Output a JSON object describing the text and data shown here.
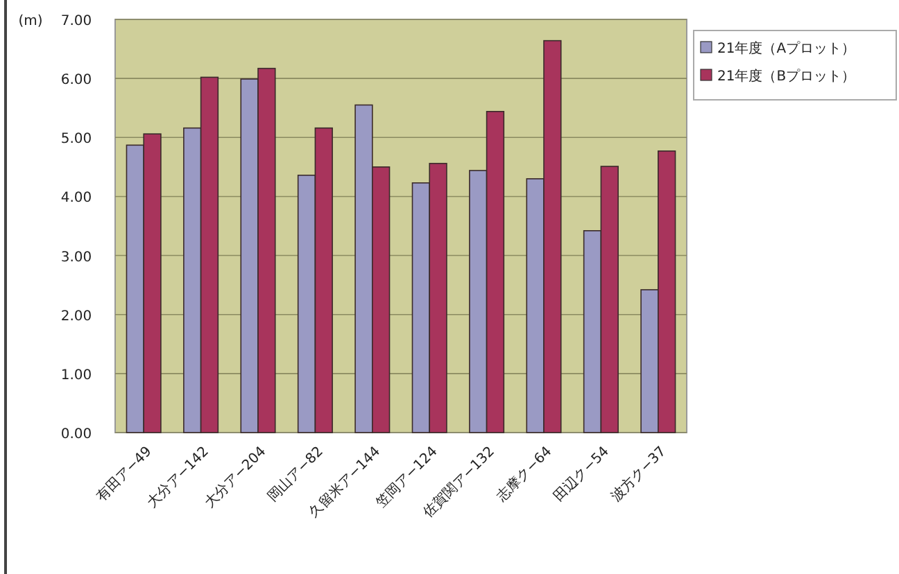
{
  "chart_data": {
    "type": "bar",
    "ylabel": "(m)",
    "categories": [
      "有田ア−49",
      "大分ア−142",
      "大分ア−204",
      "岡山ア−82",
      "久留米ア−144",
      "笠岡ア−124",
      "佐賀関ア−132",
      "志摩ク−64",
      "田辺ク−54",
      "波方ク−37"
    ],
    "series": [
      {
        "name": "21年度（Aプロット）",
        "color": "#9a9ac4",
        "values": [
          4.87,
          5.16,
          5.99,
          4.36,
          5.55,
          4.23,
          4.44,
          4.3,
          3.42,
          2.42
        ]
      },
      {
        "name": "21年度（Bプロット）",
        "color": "#a8345c",
        "values": [
          5.06,
          6.02,
          6.17,
          5.16,
          4.5,
          4.56,
          5.44,
          6.64,
          4.51,
          4.77
        ]
      }
    ],
    "ylim": [
      0,
      7
    ],
    "yticks": [
      {
        "value": 0,
        "label": "0.00"
      },
      {
        "value": 1,
        "label": "1.00"
      },
      {
        "value": 2,
        "label": "2.00"
      },
      {
        "value": 3,
        "label": "3.00"
      },
      {
        "value": 4,
        "label": "4.00"
      },
      {
        "value": 5,
        "label": "5.00"
      },
      {
        "value": 6,
        "label": "6.00"
      },
      {
        "value": 7,
        "label": "7.00"
      }
    ],
    "grid": "y",
    "legend": "top right"
  }
}
